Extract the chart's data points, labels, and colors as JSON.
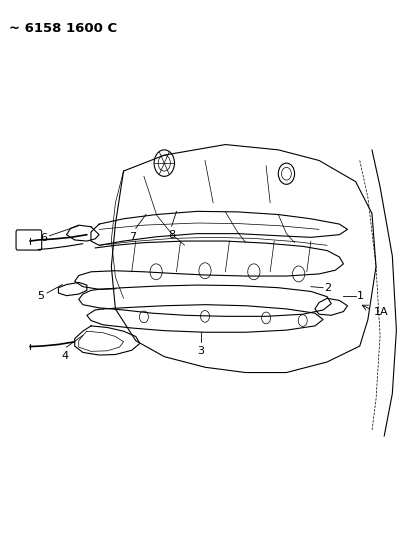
{
  "title": "~ 6158 1600 C",
  "background_color": "#ffffff",
  "line_color": "#000000",
  "fig_width": 4.1,
  "fig_height": 5.33,
  "dpi": 100,
  "label_fontsize": 8
}
